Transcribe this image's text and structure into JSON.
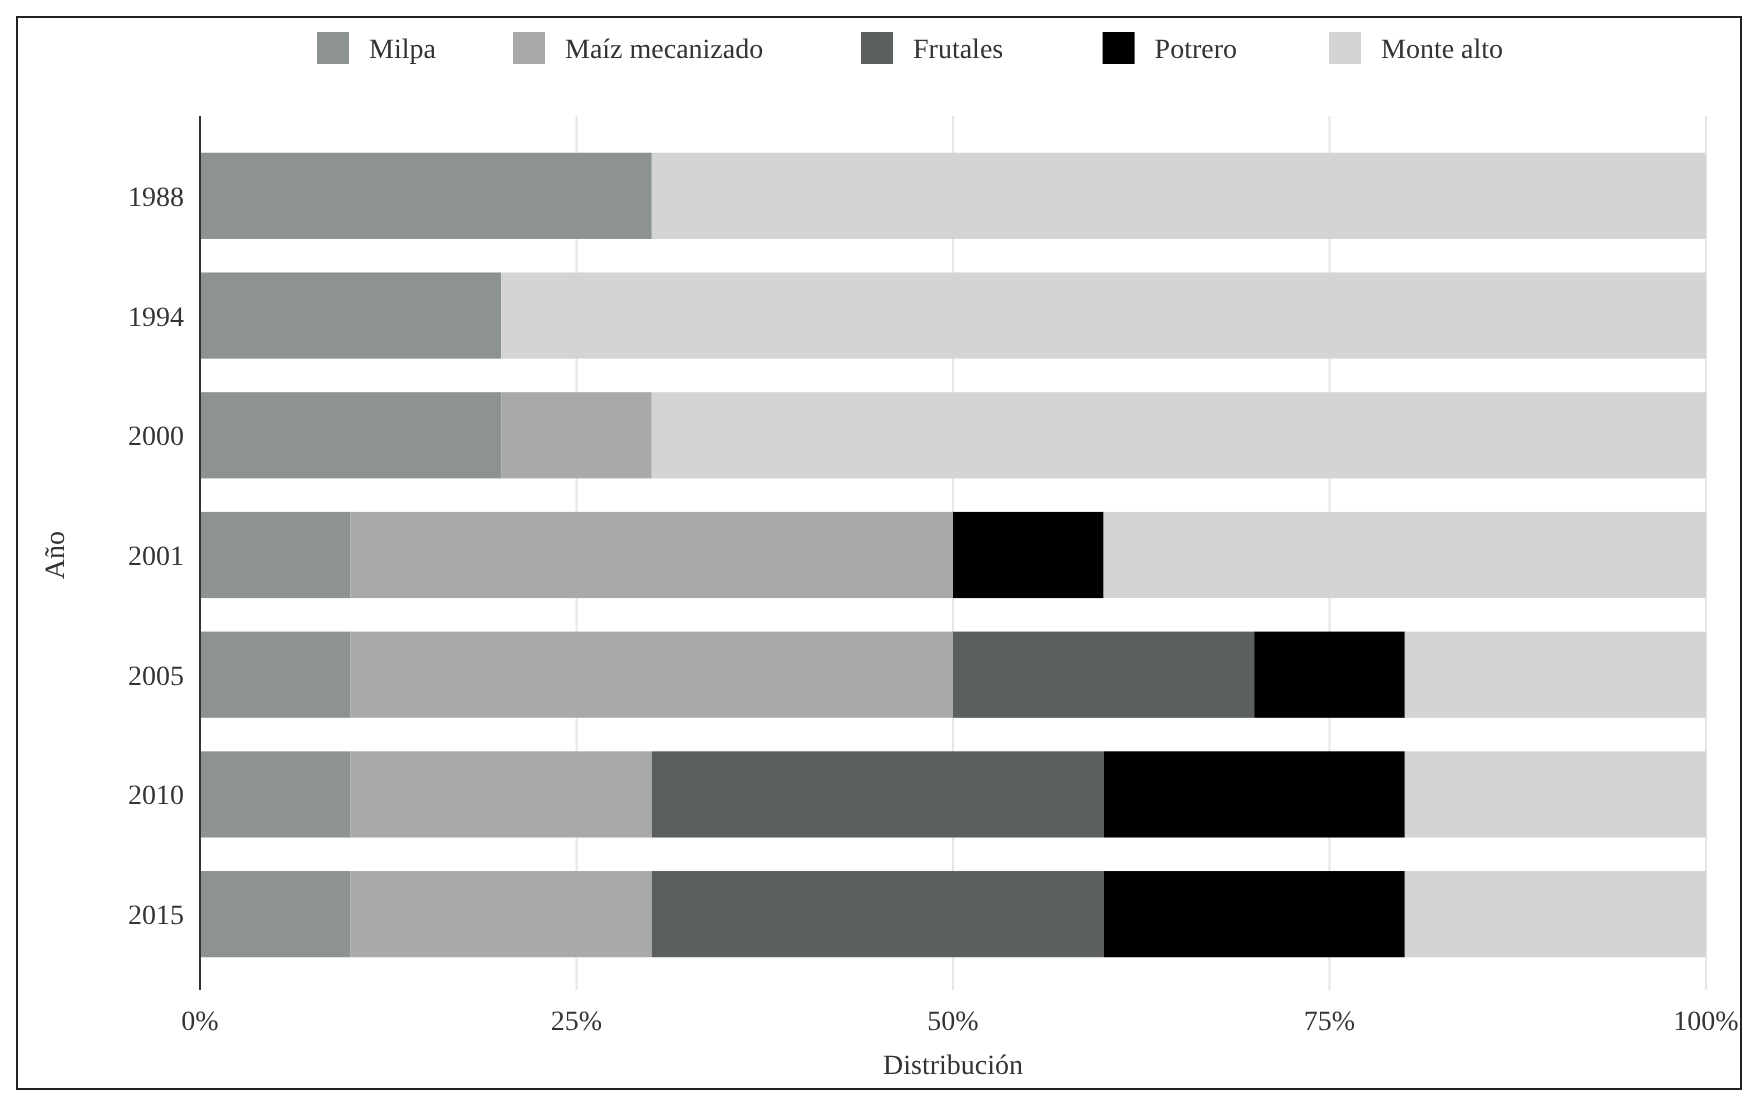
{
  "chart_data": {
    "type": "bar",
    "orientation": "horizontal",
    "stacked": true,
    "xlabel": "Distribución",
    "ylabel": "Año",
    "categories": [
      "1988",
      "1994",
      "2000",
      "2001",
      "2005",
      "2010",
      "2015"
    ],
    "series": [
      {
        "name": "Milpa",
        "color": "#8c9391",
        "values": [
          30,
          20,
          20,
          10,
          10,
          10,
          10
        ]
      },
      {
        "name": "Maíz mecanizado",
        "color": "#a8aaa9",
        "values": [
          0,
          0,
          10,
          40,
          40,
          20,
          20
        ]
      },
      {
        "name": "Frutales",
        "color": "#5b5f5d",
        "values": [
          0,
          0,
          0,
          0,
          20,
          30,
          30
        ]
      },
      {
        "name": "Potrero",
        "color": "#000000",
        "values": [
          0,
          0,
          0,
          10,
          10,
          20,
          20
        ]
      },
      {
        "name": "Monte alto",
        "color": "#d3d4d3",
        "values": [
          70,
          80,
          70,
          40,
          20,
          20,
          20
        ]
      }
    ],
    "xlim": [
      0,
      100
    ],
    "xticks": [
      {
        "value": 0,
        "label": "0%"
      },
      {
        "value": 25,
        "label": "25%"
      },
      {
        "value": 50,
        "label": "50%"
      },
      {
        "value": 75,
        "label": "75%"
      },
      {
        "value": 100,
        "label": "100%"
      }
    ],
    "grid": "x",
    "legend": "top"
  }
}
